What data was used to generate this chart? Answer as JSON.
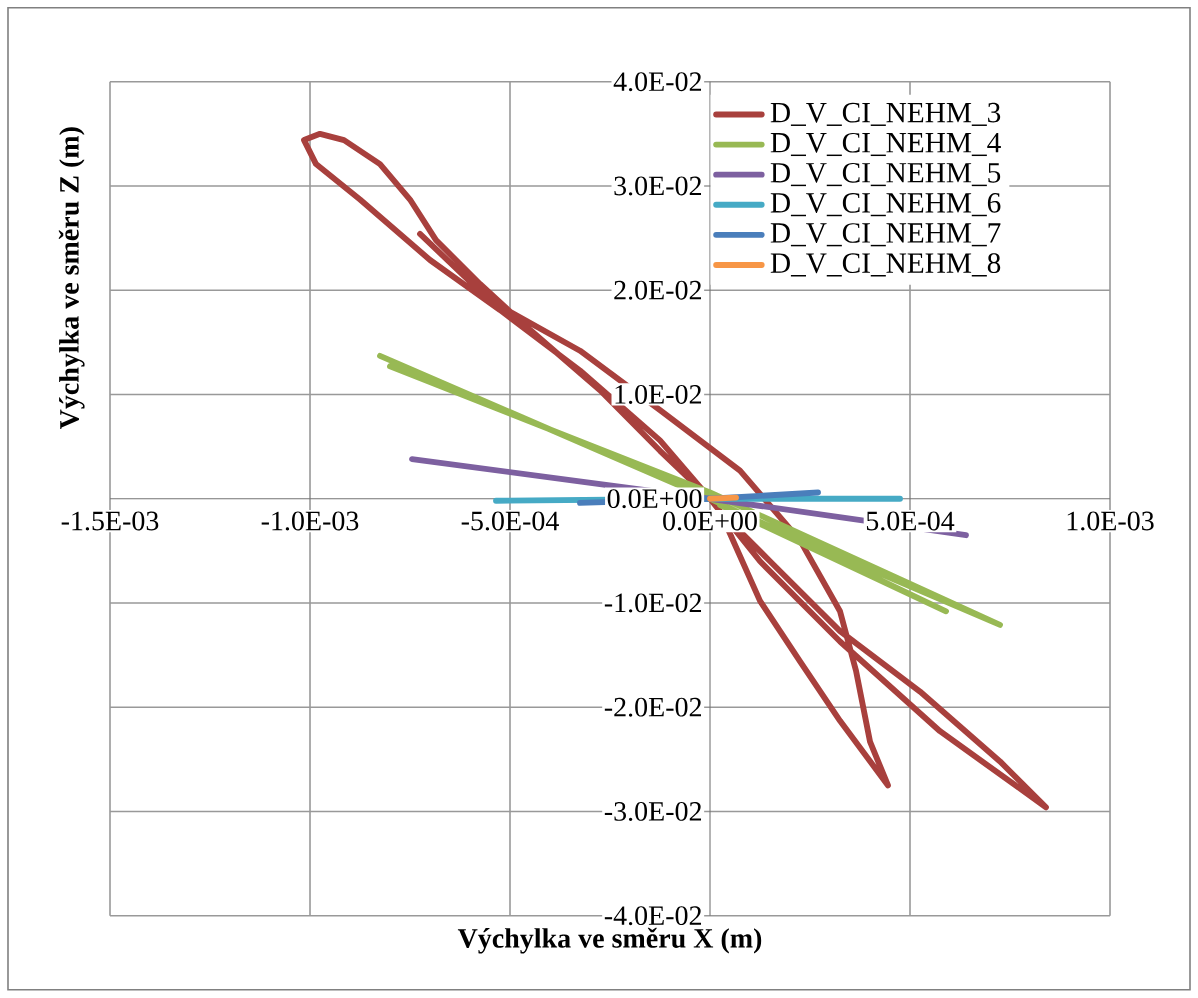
{
  "chart_data": {
    "type": "line",
    "xlabel": "Výchylka ve směru X (m)",
    "ylabel": "Výchylka ve směru Z (m)",
    "xlim": [
      -0.0015,
      0.001
    ],
    "ylim": [
      -0.04,
      0.04
    ],
    "xticks": [
      {
        "value": -0.0015,
        "label": "-1.5E-03"
      },
      {
        "value": -0.001,
        "label": "-1.0E-03"
      },
      {
        "value": -0.0005,
        "label": "-5.0E-04"
      },
      {
        "value": 0,
        "label": "0.0E+00"
      },
      {
        "value": 0.0005,
        "label": "5.0E-04"
      },
      {
        "value": 0.001,
        "label": "1.0E-03"
      }
    ],
    "yticks": [
      {
        "value": -0.04,
        "label": "-4.0E-02"
      },
      {
        "value": -0.03,
        "label": "-3.0E-02"
      },
      {
        "value": -0.02,
        "label": "-2.0E-02"
      },
      {
        "value": -0.01,
        "label": "-1.0E-02"
      },
      {
        "value": 0,
        "label": "0.0E+00"
      },
      {
        "value": 0.01,
        "label": "1.0E-02"
      },
      {
        "value": 0.02,
        "label": "2.0E-02"
      },
      {
        "value": 0.03,
        "label": "3.0E-02"
      },
      {
        "value": 0.04,
        "label": "4.0E-02"
      }
    ],
    "grid": true,
    "legend": "top right",
    "marker": "none",
    "line_style": "solid",
    "series": [
      {
        "name": "D_V_CI_NEHM_3",
        "color": "#a8403d",
        "x": [
          0,
          -0.000125,
          -0.000325,
          -0.000525,
          -0.0007,
          -0.000875,
          -0.000985,
          -0.001015,
          -0.000975,
          -0.000915,
          -0.000825,
          -0.00075,
          -0.000685,
          -0.000575,
          -0.00045,
          -0.000275,
          -0.000125,
          0,
          0.000125,
          0.000325,
          0.000575,
          0.00084,
          0.000725,
          0.000525,
          0.000325,
          0.00015,
          2.5e-05,
          0.000125,
          0.000225,
          0.000325,
          0.000445,
          0.0004,
          0.000365,
          0.000325,
          0.000225,
          7.5e-05,
          -0.000125,
          -0.000325,
          -0.00055,
          -0.000725
        ],
        "values": [
          0,
          0.0056,
          0.0123,
          0.0181,
          0.0229,
          0.0287,
          0.0321,
          0.0344,
          0.035,
          0.0344,
          0.0321,
          0.0287,
          0.0248,
          0.0206,
          0.0162,
          0.0104,
          0.0046,
          0,
          -0.006,
          -0.0137,
          -0.0223,
          -0.0296,
          -0.0252,
          -0.0185,
          -0.0127,
          -0.006,
          -0.0012,
          -0.0098,
          -0.0156,
          -0.0213,
          -0.0275,
          -0.0233,
          -0.0165,
          -0.0108,
          -0.004,
          0.0027,
          0.0085,
          0.0142,
          0.019,
          0.0254
        ]
      },
      {
        "name": "D_V_CI_NEHM_4",
        "color": "#98b954",
        "x": [
          -0.000825,
          0,
          0.00059,
          2.5e-05,
          0.000725,
          0,
          -0.0008
        ],
        "values": [
          0.0137,
          0,
          -0.0108,
          -0.0006,
          -0.0121,
          0.0006,
          0.0127
        ]
      },
      {
        "name": "D_V_CI_NEHM_5",
        "color": "#7d60a0",
        "x": [
          -0.000745,
          0,
          0.00064
        ],
        "values": [
          0.0038,
          0,
          -0.0035
        ]
      },
      {
        "name": "D_V_CI_NEHM_6",
        "color": "#46aac5",
        "x": [
          -0.000535,
          0,
          0.000475
        ],
        "values": [
          -0.0002,
          0,
          0
        ]
      },
      {
        "name": "D_V_CI_NEHM_7",
        "color": "#4a7ebb",
        "x": [
          -0.000325,
          0,
          0.00027
        ],
        "values": [
          -0.0004,
          0,
          0.0006
        ]
      },
      {
        "name": "D_V_CI_NEHM_8",
        "color": "#f79646",
        "x": [
          0,
          6.5e-05
        ],
        "values": [
          0,
          0.0001
        ]
      }
    ]
  }
}
